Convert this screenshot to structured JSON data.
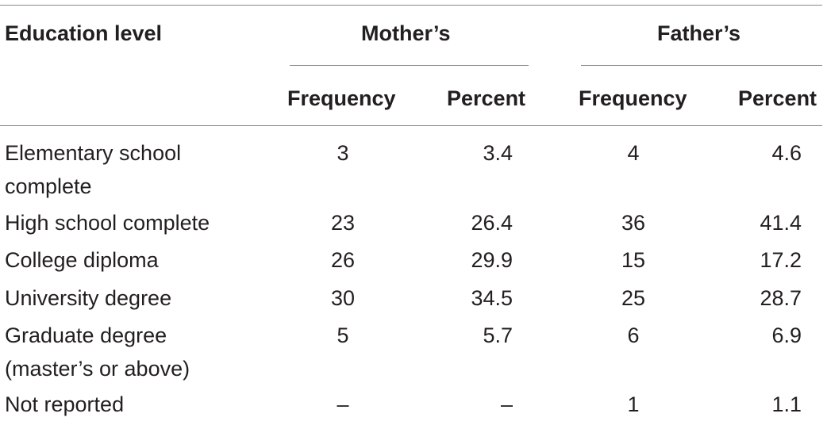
{
  "table": {
    "headers": {
      "education_level": "Education level",
      "mothers": "Mother’s",
      "fathers": "Father’s",
      "mother_frequency": "Frequency",
      "mother_percent": "Percent",
      "father_frequency": "Frequency",
      "father_percent": "Percent"
    },
    "rows": [
      {
        "level": "Elementary school complete",
        "m_freq": "3",
        "m_pct": "3.4",
        "f_freq": "4",
        "f_pct": "4.6"
      },
      {
        "level": "High school complete",
        "m_freq": "23",
        "m_pct": "26.4",
        "f_freq": "36",
        "f_pct": "41.4"
      },
      {
        "level": "College diploma",
        "m_freq": "26",
        "m_pct": "29.9",
        "f_freq": "15",
        "f_pct": "17.2"
      },
      {
        "level": "University degree",
        "m_freq": "30",
        "m_pct": "34.5",
        "f_freq": "25",
        "f_pct": "28.7"
      },
      {
        "level": "Graduate degree (master’s or above)",
        "m_freq": "5",
        "m_pct": "5.7",
        "f_freq": "6",
        "f_pct": "6.9"
      },
      {
        "level": "Not reported",
        "m_freq": "–",
        "m_pct": "–",
        "f_freq": "1",
        "f_pct": "1.1"
      }
    ]
  }
}
